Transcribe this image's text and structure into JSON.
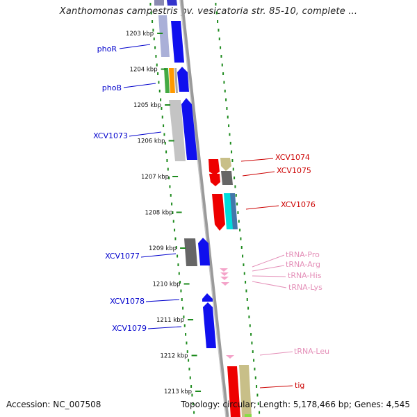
{
  "title": "Xanthomonas campestris pv. vesicatoria str. 85-10, complete ...",
  "accession": "Accession: NC_007508",
  "summary": "Topology: circular; Length: 5,178,466 bp; Genes: 4,545",
  "colors": {
    "forward_track": "#0000ee",
    "gene_label_blue": "#0000cc",
    "gene_label_red": "#cc0000",
    "trna_label": "#e48fb8",
    "trna_marker": "#f4a3c9",
    "backbone": "#888888",
    "dots": "#1e8b1e"
  },
  "ticks": [
    {
      "label": "1203 kbp"
    },
    {
      "label": "1204 kbp"
    },
    {
      "label": "1205 kbp"
    },
    {
      "label": "1206 kbp"
    },
    {
      "label": "1207 kbp"
    },
    {
      "label": "1208 kbp"
    },
    {
      "label": "1209 kbp"
    },
    {
      "label": "1210 kbp"
    },
    {
      "label": "1211 kbp"
    },
    {
      "label": "1212 kbp"
    },
    {
      "label": "1213 kbp"
    }
  ],
  "left_labels": [
    {
      "text": "phoR",
      "color": "#0000cc"
    },
    {
      "text": "phoB",
      "color": "#0000cc"
    },
    {
      "text": "XCV1073",
      "color": "#0000cc"
    },
    {
      "text": "XCV1077",
      "color": "#0000cc"
    },
    {
      "text": "XCV1078",
      "color": "#0000cc"
    },
    {
      "text": "XCV1079",
      "color": "#0000cc"
    }
  ],
  "right_labels": [
    {
      "text": "XCV1074",
      "color": "#cc0000"
    },
    {
      "text": "XCV1075",
      "color": "#cc0000"
    },
    {
      "text": "XCV1076",
      "color": "#cc0000"
    },
    {
      "text": "tRNA-Pro",
      "color": "#e48fb8"
    },
    {
      "text": "tRNA-Arg",
      "color": "#e48fb8"
    },
    {
      "text": "tRNA-His",
      "color": "#e48fb8"
    },
    {
      "text": "tRNA-Lys",
      "color": "#e48fb8"
    },
    {
      "text": "tRNA-Leu",
      "color": "#e48fb8"
    },
    {
      "text": "tig",
      "color": "#cc0000"
    }
  ]
}
